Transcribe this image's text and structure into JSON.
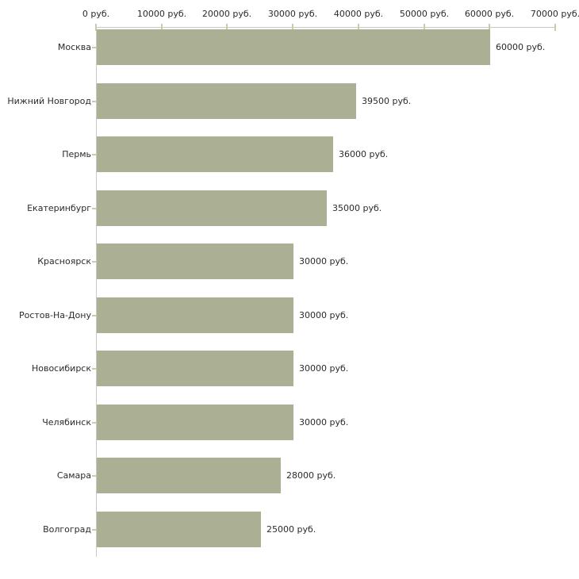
{
  "chart_data": {
    "type": "bar",
    "orientation": "horizontal",
    "title": "",
    "xlabel": "",
    "ylabel": "",
    "grid": false,
    "legend": false,
    "xlim": [
      0,
      70000
    ],
    "x_tick_values": [
      0,
      10000,
      20000,
      30000,
      40000,
      50000,
      60000,
      70000
    ],
    "x_tick_labels": [
      "0 руб.",
      "10000 руб.",
      "20000 руб.",
      "30000 руб.",
      "40000 руб.",
      "50000 руб.",
      "60000 руб.",
      "70000 руб."
    ],
    "categories": [
      "Москва",
      "Нижний Новгород",
      "Пермь",
      "Екатеринбург",
      "Красноярск",
      "Ростов-На-Дону",
      "Новосибирск",
      "Челябинск",
      "Самара",
      "Волгоград"
    ],
    "values": [
      60000,
      39500,
      36000,
      35000,
      30000,
      30000,
      30000,
      30000,
      28000,
      25000
    ],
    "value_labels": [
      "60000 руб.",
      "39500 руб.",
      "36000 руб.",
      "35000 руб.",
      "30000 руб.",
      "30000 руб.",
      "30000 руб.",
      "30000 руб.",
      "28000 руб.",
      "25000 руб."
    ],
    "colors": {
      "bar": "#abb094",
      "axis_line": "#c9c9c9",
      "tick_mark": "#cbcba4",
      "text": "#2b2b2b",
      "background": "#ffffff"
    }
  }
}
